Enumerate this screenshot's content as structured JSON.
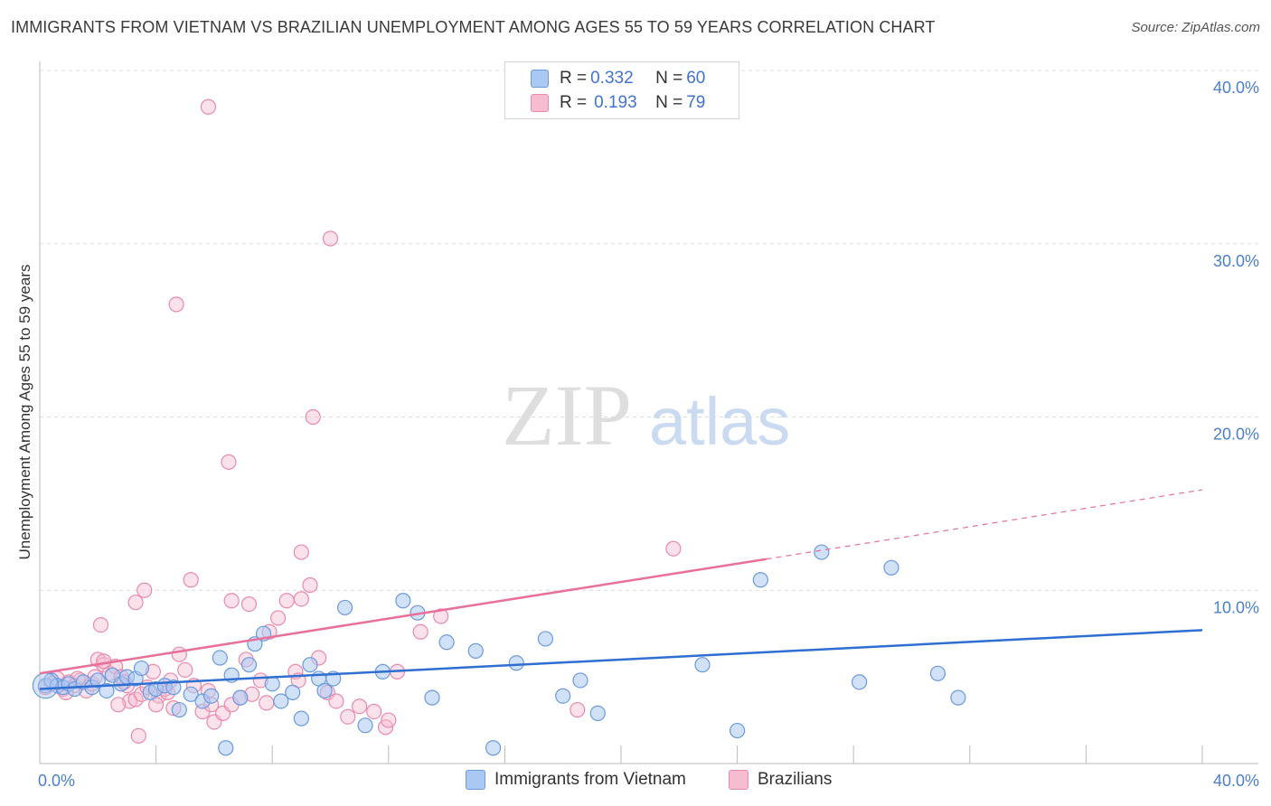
{
  "title": "IMMIGRANTS FROM VIETNAM VS BRAZILIAN UNEMPLOYMENT AMONG AGES 55 TO 59 YEARS CORRELATION CHART",
  "source": "Source: ZipAtlas.com",
  "watermark": {
    "zip": "ZIP",
    "atlas": "atlas"
  },
  "colors": {
    "blue_fill": "#a9c8f2",
    "blue_stroke": "#6b9ae0",
    "blue_line": "#2f6fd1",
    "pink_fill": "#f6bcd0",
    "pink_stroke": "#ea8aab",
    "pink_line": "#e8709a",
    "axis_tick": "#4a7fcf",
    "grid": "#dcdcdc"
  },
  "legend": {
    "rows": [
      {
        "r_label": "R = ",
        "r_value": "0.332",
        "n_label": "N = ",
        "n_value": "60"
      },
      {
        "r_label": "R = ",
        "r_value": "0.193",
        "n_label": "N = ",
        "n_value": "79"
      }
    ]
  },
  "bottom_legend": {
    "series1": "Immigrants from Vietnam",
    "series2": "Brazilians"
  },
  "chart_data": {
    "type": "scatter",
    "title": "IMMIGRANTS FROM VIETNAM VS BRAZILIAN UNEMPLOYMENT AMONG AGES 55 TO 59 YEARS CORRELATION CHART",
    "xlabel": "",
    "ylabel": "Unemployment Among Ages 55 to 59 years",
    "xlim": [
      0,
      40
    ],
    "ylim": [
      0,
      40
    ],
    "x_tick_labels": [
      "0.0%",
      "40.0%"
    ],
    "y_tick_labels": [
      "10.0%",
      "20.0%",
      "30.0%",
      "40.0%"
    ],
    "y_ticks": [
      10,
      20,
      30,
      40
    ],
    "series": [
      {
        "name": "Immigrants from Vietnam",
        "R": 0.332,
        "N": 60,
        "trend": {
          "x": [
            0,
            40
          ],
          "y": [
            4.3,
            7.7
          ]
        },
        "points": [
          [
            0.2,
            4.5
          ],
          [
            0.4,
            4.8
          ],
          [
            0.6,
            4.5
          ],
          [
            0.8,
            4.4
          ],
          [
            1.0,
            4.6
          ],
          [
            1.2,
            4.3
          ],
          [
            1.5,
            4.7
          ],
          [
            1.8,
            4.4
          ],
          [
            2.0,
            4.8
          ],
          [
            2.3,
            4.2
          ],
          [
            2.5,
            5.1
          ],
          [
            2.8,
            4.6
          ],
          [
            3.0,
            5.0
          ],
          [
            3.3,
            4.9
          ],
          [
            3.5,
            5.5
          ],
          [
            3.8,
            4.1
          ],
          [
            4.0,
            4.3
          ],
          [
            4.3,
            4.5
          ],
          [
            4.6,
            4.4
          ],
          [
            4.8,
            3.1
          ],
          [
            5.2,
            4.0
          ],
          [
            5.6,
            3.6
          ],
          [
            5.9,
            3.9
          ],
          [
            6.2,
            6.1
          ],
          [
            6.6,
            5.1
          ],
          [
            6.9,
            3.8
          ],
          [
            7.2,
            5.7
          ],
          [
            7.4,
            6.9
          ],
          [
            7.7,
            7.5
          ],
          [
            8.0,
            4.6
          ],
          [
            8.3,
            3.6
          ],
          [
            8.7,
            4.1
          ],
          [
            9.0,
            2.6
          ],
          [
            9.3,
            5.7
          ],
          [
            9.6,
            4.9
          ],
          [
            9.8,
            4.2
          ],
          [
            10.1,
            4.9
          ],
          [
            10.5,
            9.0
          ],
          [
            11.2,
            2.2
          ],
          [
            11.8,
            5.3
          ],
          [
            12.5,
            9.4
          ],
          [
            13.0,
            8.7
          ],
          [
            13.5,
            3.8
          ],
          [
            14.0,
            7.0
          ],
          [
            15.0,
            6.5
          ],
          [
            16.4,
            5.8
          ],
          [
            17.4,
            7.2
          ],
          [
            18.0,
            3.9
          ],
          [
            18.6,
            4.8
          ],
          [
            19.2,
            2.9
          ],
          [
            22.8,
            5.7
          ],
          [
            24.0,
            1.9
          ],
          [
            24.8,
            10.6
          ],
          [
            26.9,
            12.2
          ],
          [
            28.2,
            4.7
          ],
          [
            29.3,
            11.3
          ],
          [
            30.9,
            5.2
          ],
          [
            31.6,
            3.8
          ],
          [
            15.6,
            0.9
          ],
          [
            6.4,
            0.9
          ]
        ]
      },
      {
        "name": "Brazilians",
        "R": 0.193,
        "N": 79,
        "trend": {
          "x": [
            0,
            25
          ],
          "y": [
            5.2,
            11.8
          ]
        },
        "trend_dashed": {
          "x": [
            25,
            40
          ],
          "y": [
            11.8,
            15.8
          ]
        },
        "points": [
          [
            0.2,
            4.4
          ],
          [
            0.4,
            4.6
          ],
          [
            0.6,
            4.9
          ],
          [
            0.8,
            4.3
          ],
          [
            1.0,
            4.7
          ],
          [
            1.2,
            4.5
          ],
          [
            1.4,
            4.8
          ],
          [
            1.6,
            4.2
          ],
          [
            1.8,
            4.6
          ],
          [
            2.0,
            6.0
          ],
          [
            2.2,
            5.7
          ],
          [
            2.1,
            8.0
          ],
          [
            2.4,
            5.2
          ],
          [
            2.6,
            5.6
          ],
          [
            2.8,
            5.0
          ],
          [
            3.0,
            4.5
          ],
          [
            3.1,
            3.6
          ],
          [
            3.3,
            3.7
          ],
          [
            3.5,
            4.0
          ],
          [
            3.7,
            4.4
          ],
          [
            3.9,
            5.3
          ],
          [
            4.1,
            3.9
          ],
          [
            4.3,
            4.3
          ],
          [
            4.5,
            4.8
          ],
          [
            4.8,
            6.3
          ],
          [
            5.0,
            5.4
          ],
          [
            5.3,
            4.5
          ],
          [
            5.6,
            3.0
          ],
          [
            5.8,
            4.2
          ],
          [
            6.0,
            2.4
          ],
          [
            6.3,
            2.9
          ],
          [
            6.6,
            3.4
          ],
          [
            6.9,
            3.8
          ],
          [
            7.1,
            6.0
          ],
          [
            7.3,
            4.0
          ],
          [
            7.6,
            4.8
          ],
          [
            7.9,
            7.6
          ],
          [
            8.2,
            8.4
          ],
          [
            8.5,
            9.4
          ],
          [
            8.8,
            5.3
          ],
          [
            9.0,
            12.2
          ],
          [
            9.3,
            10.3
          ],
          [
            9.6,
            6.1
          ],
          [
            9.9,
            4.1
          ],
          [
            10.2,
            3.6
          ],
          [
            10.6,
            2.7
          ],
          [
            11.0,
            3.3
          ],
          [
            11.5,
            3.0
          ],
          [
            11.9,
            2.1
          ],
          [
            12.3,
            5.3
          ],
          [
            13.1,
            7.6
          ],
          [
            13.8,
            8.5
          ],
          [
            3.3,
            9.3
          ],
          [
            3.6,
            10.0
          ],
          [
            5.2,
            10.6
          ],
          [
            6.6,
            9.4
          ],
          [
            7.2,
            9.2
          ],
          [
            9.0,
            9.5
          ],
          [
            3.4,
            1.6
          ],
          [
            1.9,
            5.0
          ],
          [
            2.7,
            3.4
          ],
          [
            4.0,
            3.4
          ],
          [
            4.6,
            3.2
          ],
          [
            5.9,
            3.4
          ],
          [
            7.8,
            3.5
          ],
          [
            8.9,
            4.8
          ],
          [
            12.0,
            2.5
          ],
          [
            18.5,
            3.1
          ],
          [
            21.8,
            12.4
          ],
          [
            6.5,
            17.4
          ],
          [
            9.4,
            20.0
          ],
          [
            4.7,
            26.5
          ],
          [
            5.8,
            37.9
          ],
          [
            10.0,
            30.3
          ],
          [
            2.2,
            5.9
          ],
          [
            1.3,
            4.9
          ],
          [
            0.9,
            4.1
          ],
          [
            2.9,
            4.7
          ],
          [
            4.4,
            4.1
          ]
        ]
      }
    ]
  }
}
